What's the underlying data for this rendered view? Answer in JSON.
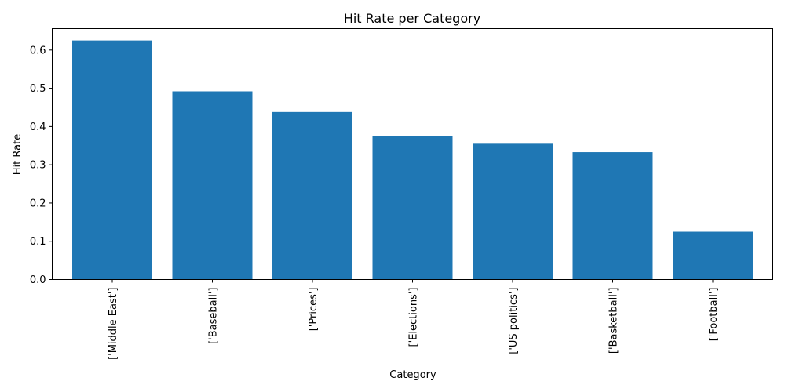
{
  "chart_data": {
    "type": "bar",
    "title": "Hit Rate per Category",
    "xlabel": "Category",
    "ylabel": "Hit Rate",
    "categories": [
      "['Middle East']",
      "['Baseball']",
      "['Prices']",
      "['Elections']",
      "['US politics']",
      "['Basketball']",
      "['Football']"
    ],
    "values": [
      0.625,
      0.492,
      0.438,
      0.375,
      0.355,
      0.333,
      0.125
    ],
    "ylim": [
      0,
      0.656
    ],
    "yticks": [
      "0.0",
      "0.1",
      "0.2",
      "0.3",
      "0.4",
      "0.5",
      "0.6"
    ],
    "bar_color": "#1f77b4",
    "grid": false,
    "legend": false
  }
}
